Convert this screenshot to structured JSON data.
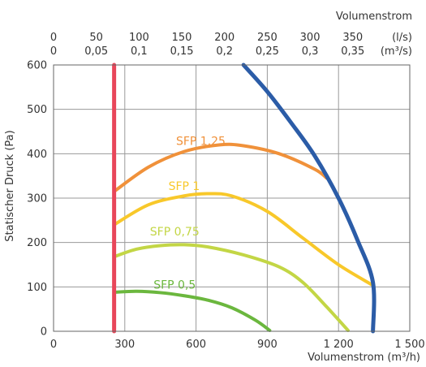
{
  "chart_data": {
    "type": "line",
    "xlabel": "Volumenstrom (m³/h)",
    "ylabel": "Statischer Druck (Pa)",
    "top_axis_title": "Volumenstrom",
    "xlim": [
      0,
      1500
    ],
    "ylim": [
      0,
      600
    ],
    "grid": true,
    "x_ticks": [
      {
        "value": 0,
        "label": "0"
      },
      {
        "value": 300,
        "label": "300"
      },
      {
        "value": 600,
        "label": "600"
      },
      {
        "value": 900,
        "label": "900"
      },
      {
        "value": 1200,
        "label": "1 200"
      },
      {
        "value": 1500,
        "label": "1 500"
      }
    ],
    "y_ticks": [
      {
        "value": 0,
        "label": "0"
      },
      {
        "value": 100,
        "label": "100"
      },
      {
        "value": 200,
        "label": "200"
      },
      {
        "value": 300,
        "label": "300"
      },
      {
        "value": 400,
        "label": "400"
      },
      {
        "value": 500,
        "label": "500"
      },
      {
        "value": 600,
        "label": "600"
      }
    ],
    "top_ticks": [
      {
        "value": 0,
        "ls": "0",
        "m3s": "0"
      },
      {
        "value": 180,
        "ls": "50",
        "m3s": "0,05"
      },
      {
        "value": 360,
        "ls": "100",
        "m3s": "0,1"
      },
      {
        "value": 540,
        "ls": "150",
        "m3s": "0,15"
      },
      {
        "value": 720,
        "ls": "200",
        "m3s": "0,2"
      },
      {
        "value": 900,
        "ls": "250",
        "m3s": "0,25"
      },
      {
        "value": 1080,
        "ls": "300",
        "m3s": "0,3"
      },
      {
        "value": 1260,
        "ls": "350",
        "m3s": "0,35"
      }
    ],
    "top_units": {
      "ls": "(l/s)",
      "m3s": "(m³/s)"
    },
    "series": [
      {
        "name": "SFP 1,25",
        "color": "#f0913a",
        "label_at": [
          620,
          420
        ],
        "points": [
          [
            255,
            315
          ],
          [
            400,
            370
          ],
          [
            550,
            405
          ],
          [
            700,
            420
          ],
          [
            800,
            418
          ],
          [
            950,
            400
          ],
          [
            1100,
            365
          ],
          [
            1150,
            345
          ]
        ]
      },
      {
        "name": "SFP 1",
        "color": "#f8c82a",
        "label_at": [
          550,
          318
        ],
        "points": [
          [
            255,
            240
          ],
          [
            400,
            285
          ],
          [
            550,
            305
          ],
          [
            650,
            310
          ],
          [
            750,
            305
          ],
          [
            900,
            270
          ],
          [
            1050,
            210
          ],
          [
            1200,
            150
          ],
          [
            1340,
            105
          ]
        ]
      },
      {
        "name": "SFP 0,75",
        "color": "#c3d645",
        "label_at": [
          510,
          216
        ],
        "points": [
          [
            255,
            168
          ],
          [
            350,
            185
          ],
          [
            450,
            193
          ],
          [
            550,
            195
          ],
          [
            650,
            190
          ],
          [
            800,
            172
          ],
          [
            950,
            145
          ],
          [
            1050,
            110
          ],
          [
            1150,
            55
          ],
          [
            1240,
            2
          ]
        ]
      },
      {
        "name": "SFP 0,5",
        "color": "#6bb73e",
        "label_at": [
          510,
          96
        ],
        "points": [
          [
            255,
            88
          ],
          [
            350,
            90
          ],
          [
            450,
            87
          ],
          [
            550,
            80
          ],
          [
            650,
            70
          ],
          [
            750,
            53
          ],
          [
            850,
            25
          ],
          [
            910,
            2
          ]
        ]
      },
      {
        "name": "",
        "color": "#2b5ca7",
        "points": [
          [
            800,
            600
          ],
          [
            900,
            540
          ],
          [
            1000,
            470
          ],
          [
            1100,
            395
          ],
          [
            1200,
            300
          ],
          [
            1280,
            205
          ],
          [
            1345,
            110
          ],
          [
            1345,
            0
          ]
        ]
      },
      {
        "name": "",
        "color": "#e8465a",
        "points": [
          [
            255,
            0
          ],
          [
            255,
            600
          ]
        ]
      }
    ]
  }
}
